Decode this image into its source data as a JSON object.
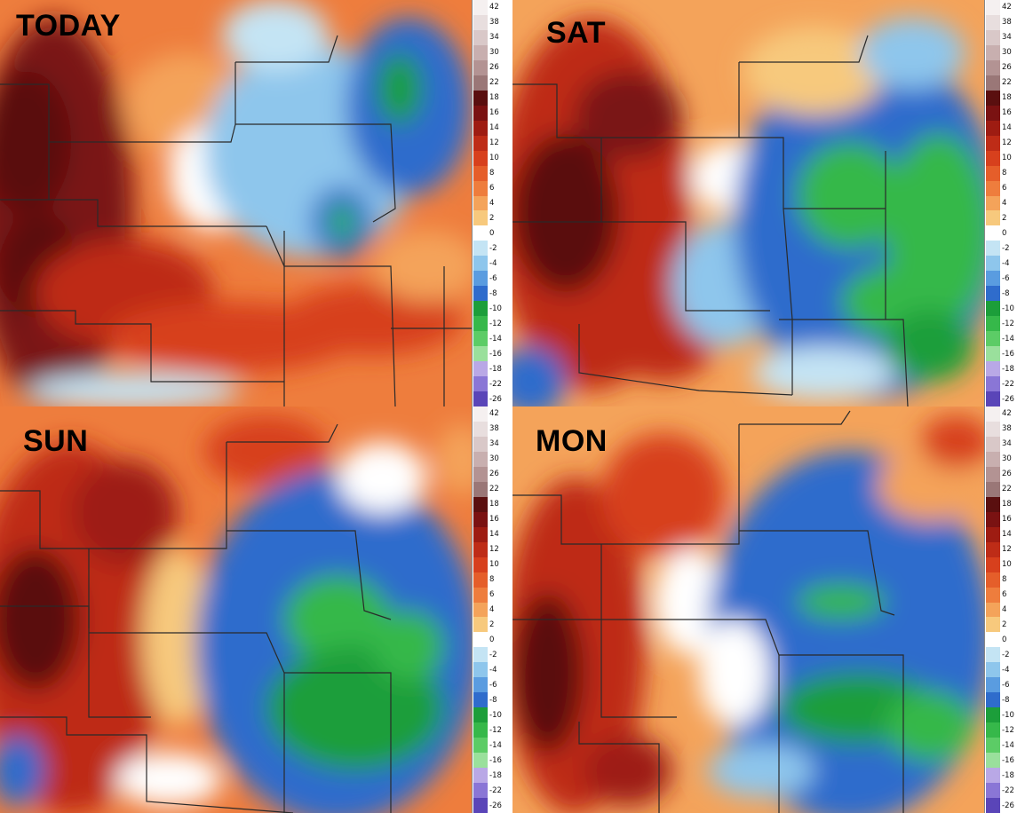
{
  "panels": [
    {
      "title": "TODAY",
      "variant": "today"
    },
    {
      "title": "SAT",
      "variant": "sat"
    },
    {
      "title": "SUN",
      "variant": "sun"
    },
    {
      "title": "MON",
      "variant": "mon"
    }
  ],
  "colorbar": {
    "labels": [
      "42",
      "38",
      "34",
      "30",
      "26",
      "22",
      "18",
      "16",
      "14",
      "12",
      "10",
      "8",
      "6",
      "4",
      "2",
      "0",
      "-2",
      "-4",
      "-6",
      "-8",
      "-10",
      "-12",
      "-14",
      "-16",
      "-18",
      "-22",
      "-26"
    ],
    "colors": [
      "#f5f0f0",
      "#e8dede",
      "#d9c8c8",
      "#c8afaf",
      "#b39393",
      "#9a7777",
      "#5a0f0f",
      "#7a1212",
      "#9e1c12",
      "#be2c17",
      "#d7401d",
      "#e55e2a",
      "#ee7d3d",
      "#f4a35a",
      "#f7c97d",
      "#ffffff",
      "#c4e4f4",
      "#8ec6ec",
      "#5a9ce0",
      "#2f6ccc",
      "#1c9e3a",
      "#36b84a",
      "#5ccc66",
      "#9ae09c",
      "#b9a8e6",
      "#8a76d6",
      "#5a45b8"
    ]
  },
  "legend_colors": {
    "warm_extreme": "#5a0f0f",
    "warm_strong": "#be2c17",
    "warm_mild": "#ee7d3d",
    "warm_light": "#f7c97d",
    "neutral": "#ffffff",
    "cool_light": "#8ec6ec",
    "cool_mid": "#2f6ccc",
    "cool_strong": "#1c9e3a",
    "cool_extreme": "#8a76d6"
  }
}
